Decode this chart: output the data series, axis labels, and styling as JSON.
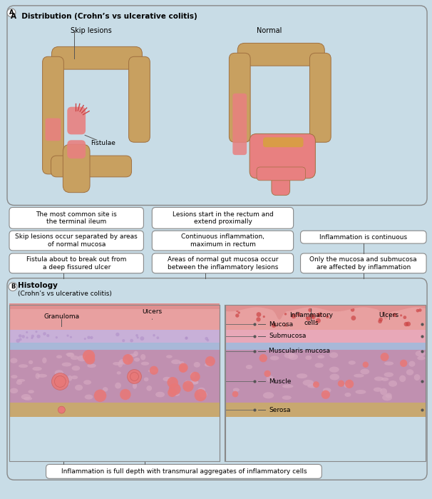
{
  "bg_color": "#c8dce6",
  "white": "#ffffff",
  "border_color": "#888888",
  "title_A": "A  Distribution (Crohn’s vs ulcerative colitis)",
  "title_B": "B  Histology\n(Crohn’s vs ulcerative colitis)",
  "label_skip": "Skip lesions",
  "label_normal": "Normal",
  "label_fistulae": "Fistulae",
  "box1_text": "The most common site is\nthe terminal ileum",
  "box2_text": "Lesions start in the rectum and\nextend proximally",
  "box3_text": "Skip lesions occur separated by areas\nof normal mucosa",
  "box4_text": "Continuous inflammation,\nmaximum in rectum",
  "box5_text": "Fistula about to break out from\na deep fissured ulcer",
  "box6_text": "Areas of normal gut mucosa occur\nbetween the inflammatory lesions",
  "box7_text": "Inflammation is continuous",
  "box8_text": "Only the mucosa and submucosa\nare affected by inflammation",
  "box_bottom": "Inflammation is full depth with transmural aggregates of inflammatory cells",
  "label_granuloma": "Granuloma",
  "label_ulcers1": "Ulcers",
  "label_ulcers2": "Ulcers",
  "label_inf_cells": "Inflammatory\ncells",
  "label_mucosa": "Mucosa",
  "label_submucosa": "Submucosa",
  "label_muscularis": "Muscularis mucosa",
  "label_muscle": "Muscle",
  "label_serosa": "Serosa",
  "colon_brown": "#c8a060",
  "colon_pink": "#e88080",
  "colon_dark": "#a07040",
  "mucosa_pink": "#e8a0a0",
  "submucosa_lavender": "#c8b0d8",
  "muscularis_blue": "#a8b8d8",
  "muscle_pink": "#dca0b0",
  "serosa_tan": "#c8a870",
  "cell_mauve": "#c090b0",
  "cell_pink": "#e87878"
}
